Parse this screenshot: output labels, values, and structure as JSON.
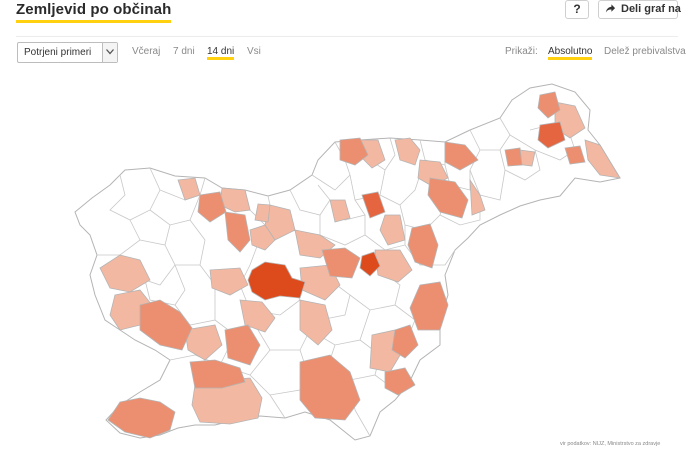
{
  "header": {
    "title": "Zemljevid po občinah",
    "help_label": "?",
    "share_label": "Deli graf na",
    "share_icon": "share-arrow-icon"
  },
  "controls": {
    "select_value": "Potrjeni primeri",
    "ranges": [
      "Včeraj",
      "7 dni",
      "14 dni",
      "Vsi"
    ],
    "active_range": "14 dni",
    "show_label": "Prikaži:",
    "show_options": [
      "Absolutno",
      "Delež prebivalstva"
    ],
    "active_show": "Absolutno"
  },
  "map": {
    "colors": {
      "none": "#ffffff",
      "low": "#f3b8a1",
      "medium": "#ec8f70",
      "high": "#e4653f",
      "highest": "#dd4b1c",
      "border": "#b4b4b4",
      "accent": "#ffd10f"
    }
  },
  "footer": {
    "source": "vir podatkov: NIJZ, Ministrstvo za zdravje"
  }
}
